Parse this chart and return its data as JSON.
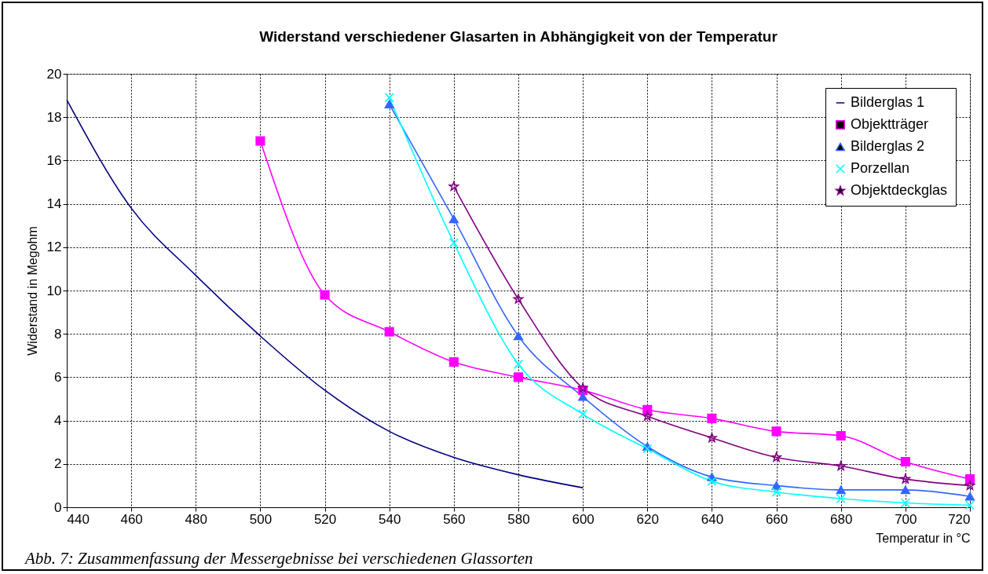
{
  "chart_data": {
    "type": "line",
    "title": "Widerstand verschiedener Glasarten in Abhängigkeit von der Temperatur",
    "xlabel": "Temperatur in °C",
    "ylabel": "Widerstand in Megohm",
    "annotations": [
      "Abb. 7: Zusammenfassung der Messergebnisse bei verschiedenen Glassorten"
    ],
    "xlim": [
      440,
      720
    ],
    "xticks": [
      440,
      460,
      480,
      500,
      520,
      540,
      560,
      580,
      600,
      620,
      640,
      660,
      680,
      700,
      720
    ],
    "ylim": [
      0,
      20
    ],
    "yticks": [
      0,
      2,
      4,
      6,
      8,
      10,
      12,
      14,
      16,
      18,
      20
    ],
    "grid": true,
    "legend": "top right",
    "series": [
      {
        "name": "Bilderglas 1",
        "color": "#000080",
        "marker": "none",
        "x": [
          440,
          460,
          480,
          500,
          520,
          540,
          560,
          580,
          600
        ],
        "values": [
          18.8,
          13.8,
          10.7,
          7.9,
          5.4,
          3.5,
          2.3,
          1.5,
          0.9
        ]
      },
      {
        "name": "Objektträger",
        "color": "#ff00ff",
        "marker": "square",
        "x": [
          500,
          520,
          540,
          560,
          580,
          600,
          620,
          640,
          660,
          680,
          700,
          720
        ],
        "values": [
          16.9,
          9.8,
          8.1,
          6.7,
          6.0,
          5.4,
          4.5,
          4.1,
          3.5,
          3.3,
          2.1,
          1.3
        ]
      },
      {
        "name": "Bilderglas 2",
        "color": "#3366ff",
        "marker": "triangle",
        "x": [
          540,
          560,
          580,
          600,
          620,
          640,
          660,
          680,
          700,
          720
        ],
        "values": [
          18.6,
          13.3,
          7.9,
          5.1,
          2.8,
          1.4,
          1.0,
          0.8,
          0.8,
          0.5
        ]
      },
      {
        "name": "Porzellan",
        "color": "#00ffff",
        "marker": "cross",
        "x": [
          540,
          560,
          580,
          600,
          620,
          640,
          660,
          680,
          700,
          720
        ],
        "values": [
          18.9,
          12.2,
          6.6,
          4.3,
          2.7,
          1.2,
          0.7,
          0.4,
          0.2,
          0.1
        ]
      },
      {
        "name": "Objektdeckglas",
        "color": "#800080",
        "marker": "star",
        "x": [
          560,
          580,
          600,
          620,
          640,
          660,
          680,
          700,
          720
        ],
        "values": [
          14.8,
          9.6,
          5.5,
          4.2,
          3.2,
          2.3,
          1.9,
          1.3,
          1.0
        ]
      }
    ]
  }
}
